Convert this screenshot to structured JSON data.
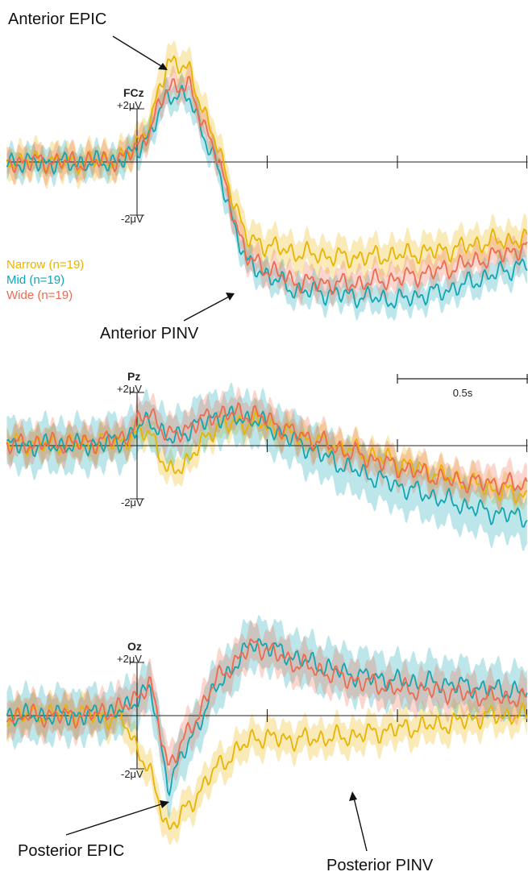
{
  "chart_data": {
    "type": "line",
    "x_axis": {
      "range_s": [
        -0.5,
        1.5
      ],
      "ticks_s": [
        0.5,
        1.0
      ],
      "stimulus_onset_s": 0
    },
    "scale_bar": {
      "label": "0.5s",
      "duration_s": 0.5
    },
    "y_scale": {
      "top_label": "+2μV",
      "bottom_label": "-2μV",
      "top_value_uV": 2,
      "bottom_value_uV": -2
    },
    "legend": [
      {
        "name": "Narrow (n=19)",
        "color": "#e8b400"
      },
      {
        "name": "Mid (n=19)",
        "color": "#12a6b3"
      },
      {
        "name": "Wide (n=19)",
        "color": "#ef6a4f"
      }
    ],
    "panels": [
      {
        "electrode": "FCz",
        "series": [
          {
            "name": "Narrow",
            "x": [
              -0.5,
              -0.2,
              -0.05,
              0.05,
              0.12,
              0.2,
              0.3,
              0.42,
              0.6,
              0.8,
              1.0,
              1.2,
              1.35,
              1.5
            ],
            "y": [
              0.05,
              0.0,
              0.1,
              1.4,
              3.9,
              3.4,
              0.8,
              -2.9,
              -3.4,
              -3.6,
              -3.5,
              -3.3,
              -3.0,
              -2.9
            ],
            "band": 0.6
          },
          {
            "name": "Mid",
            "x": [
              -0.5,
              -0.2,
              -0.05,
              0.05,
              0.12,
              0.2,
              0.3,
              0.42,
              0.6,
              0.8,
              1.0,
              1.2,
              1.35,
              1.5
            ],
            "y": [
              0.0,
              -0.05,
              0.05,
              1.0,
              2.6,
              2.4,
              0.0,
              -3.8,
              -4.8,
              -5.0,
              -5.2,
              -4.8,
              -4.3,
              -3.8
            ],
            "band": 0.5
          },
          {
            "name": "Wide",
            "x": [
              -0.5,
              -0.2,
              -0.05,
              0.05,
              0.12,
              0.2,
              0.3,
              0.42,
              0.6,
              0.8,
              1.0,
              1.2,
              1.35,
              1.5
            ],
            "y": [
              0.0,
              0.0,
              0.1,
              1.2,
              2.9,
              2.8,
              0.4,
              -3.6,
              -4.5,
              -4.6,
              -4.4,
              -4.0,
              -3.6,
              -3.2
            ],
            "band": 0.5
          }
        ]
      },
      {
        "electrode": "Pz",
        "series": [
          {
            "name": "Narrow",
            "x": [
              -0.5,
              -0.2,
              -0.05,
              0.05,
              0.12,
              0.2,
              0.3,
              0.45,
              0.6,
              0.8,
              1.0,
              1.2,
              1.35,
              1.5
            ],
            "y": [
              0.1,
              0.05,
              0.2,
              0.6,
              -1.1,
              -0.5,
              0.7,
              0.9,
              0.4,
              -0.1,
              -0.6,
              -1.2,
              -1.6,
              -1.9
            ],
            "band": 0.5
          },
          {
            "name": "Mid",
            "x": [
              -0.5,
              -0.2,
              -0.05,
              0.05,
              0.12,
              0.2,
              0.3,
              0.45,
              0.6,
              0.8,
              1.0,
              1.2,
              1.35,
              1.5
            ],
            "y": [
              0.0,
              0.0,
              0.2,
              1.0,
              0.2,
              0.6,
              1.1,
              1.0,
              0.2,
              -0.8,
              -1.5,
              -2.1,
              -2.5,
              -2.7
            ],
            "band": 0.9
          },
          {
            "name": "Wide",
            "x": [
              -0.5,
              -0.2,
              -0.05,
              0.05,
              0.12,
              0.2,
              0.3,
              0.45,
              0.6,
              0.8,
              1.0,
              1.2,
              1.35,
              1.5
            ],
            "y": [
              0.05,
              0.1,
              0.3,
              1.3,
              0.3,
              0.7,
              1.2,
              1.2,
              0.5,
              -0.2,
              -0.8,
              -1.3,
              -1.4,
              -1.5
            ],
            "band": 0.6
          }
        ]
      },
      {
        "electrode": "Oz",
        "series": [
          {
            "name": "Narrow",
            "x": [
              -0.5,
              -0.2,
              -0.05,
              0.05,
              0.12,
              0.2,
              0.3,
              0.45,
              0.6,
              0.8,
              1.0,
              1.2,
              1.35,
              1.5
            ],
            "y": [
              0.0,
              0.1,
              -0.2,
              -2.2,
              -4.3,
              -3.4,
              -2.0,
              -0.8,
              -0.9,
              -0.8,
              -0.5,
              -0.3,
              0.0,
              0.0
            ],
            "band": 0.6
          },
          {
            "name": "Mid",
            "x": [
              -0.5,
              -0.2,
              -0.05,
              0.05,
              0.12,
              0.2,
              0.3,
              0.45,
              0.6,
              0.8,
              1.0,
              1.2,
              1.35,
              1.5
            ],
            "y": [
              0.0,
              0.0,
              0.2,
              1.1,
              -2.6,
              -1.0,
              1.0,
              2.8,
              2.2,
              1.6,
              1.3,
              1.2,
              1.0,
              0.9
            ],
            "band": 0.9
          },
          {
            "name": "Wide",
            "x": [
              -0.5,
              -0.2,
              -0.05,
              0.05,
              0.12,
              0.2,
              0.3,
              0.45,
              0.6,
              0.8,
              1.0,
              1.2,
              1.35,
              1.5
            ],
            "y": [
              0.0,
              0.0,
              0.3,
              1.2,
              -1.9,
              -0.6,
              1.3,
              2.7,
              2.0,
              1.4,
              1.0,
              0.9,
              0.7,
              0.6
            ],
            "band": 0.7
          }
        ]
      }
    ],
    "annotations": [
      {
        "text": "Anterior EPIC",
        "panel": "FCz"
      },
      {
        "text": "Anterior PINV",
        "panel": "FCz"
      },
      {
        "text": "Posterior EPIC",
        "panel": "Oz"
      },
      {
        "text": "Posterior PINV",
        "panel": "Oz"
      }
    ]
  }
}
